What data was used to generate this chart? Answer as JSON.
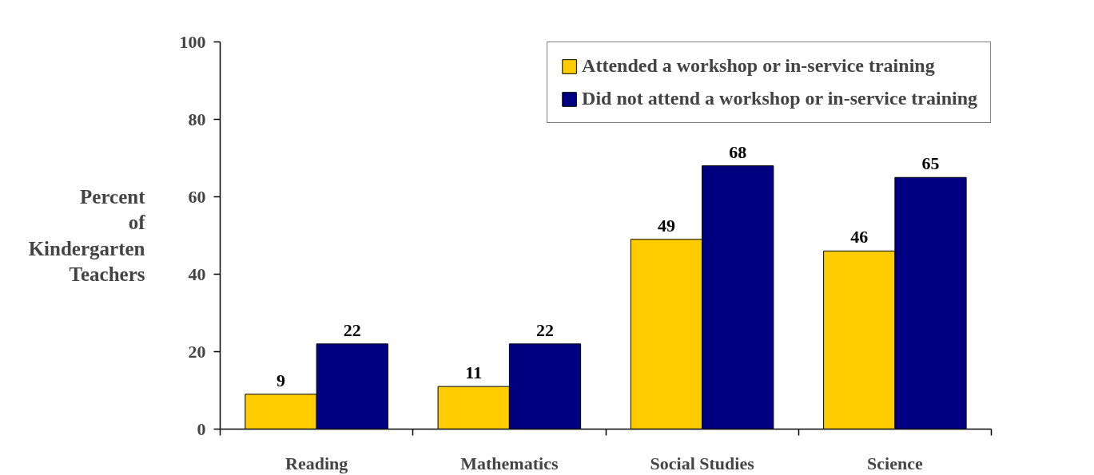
{
  "chart_data": {
    "type": "bar",
    "ylabel": "Percent of Kindergarten Teachers",
    "categories": [
      "Reading",
      "Mathematics",
      "Social Studies",
      "Science"
    ],
    "series": [
      {
        "name": "Attended a workshop or in-service training",
        "color": "#ffcc00",
        "values": [
          9,
          11,
          49,
          46
        ]
      },
      {
        "name": "Did not attend a workshop or in-service training",
        "color": "#000080",
        "values": [
          22,
          22,
          68,
          65
        ]
      }
    ],
    "ylim": [
      0,
      100
    ],
    "yticks": [
      0,
      20,
      40,
      60,
      80,
      100
    ],
    "grid": false,
    "legend": "top right",
    "data_labels": true
  }
}
